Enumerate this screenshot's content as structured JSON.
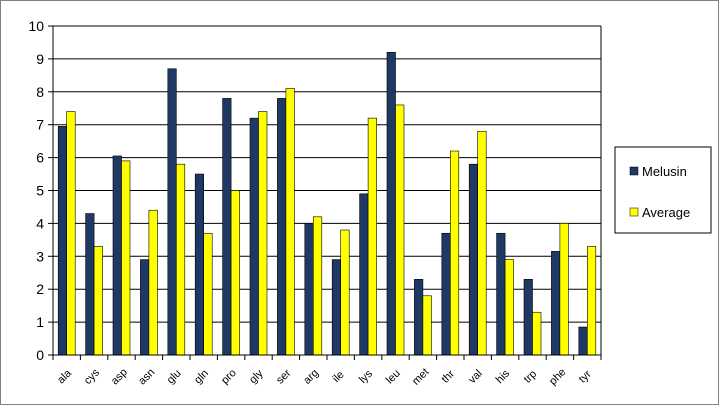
{
  "chart_data": {
    "type": "bar",
    "title": "",
    "xlabel": "",
    "ylabel": "",
    "ylim": [
      0,
      10
    ],
    "yticks": [
      0,
      1,
      2,
      3,
      4,
      5,
      6,
      7,
      8,
      9,
      10
    ],
    "grid": true,
    "legend_position": "right",
    "categories": [
      "ala",
      "cys",
      "asp",
      "asn",
      "glu",
      "gln",
      "pro",
      "gly",
      "ser",
      "arg",
      "ile",
      "lys",
      "leu",
      "met",
      "thr",
      "val",
      "his",
      "trp",
      "phe",
      "tyr"
    ],
    "series": [
      {
        "name": "Melusin",
        "color": "#1f3864",
        "values": [
          6.95,
          4.3,
          6.05,
          2.9,
          8.7,
          5.5,
          7.8,
          7.2,
          7.8,
          4.0,
          2.9,
          4.9,
          9.2,
          2.3,
          3.7,
          5.8,
          3.7,
          2.3,
          3.15,
          0.85
        ]
      },
      {
        "name": "Average",
        "color": "#ffff00",
        "values": [
          7.4,
          3.3,
          5.9,
          4.4,
          5.8,
          3.7,
          5.0,
          7.4,
          8.1,
          4.2,
          3.8,
          7.2,
          7.6,
          1.8,
          6.2,
          6.8,
          2.9,
          1.3,
          4.0,
          3.3
        ]
      }
    ]
  }
}
